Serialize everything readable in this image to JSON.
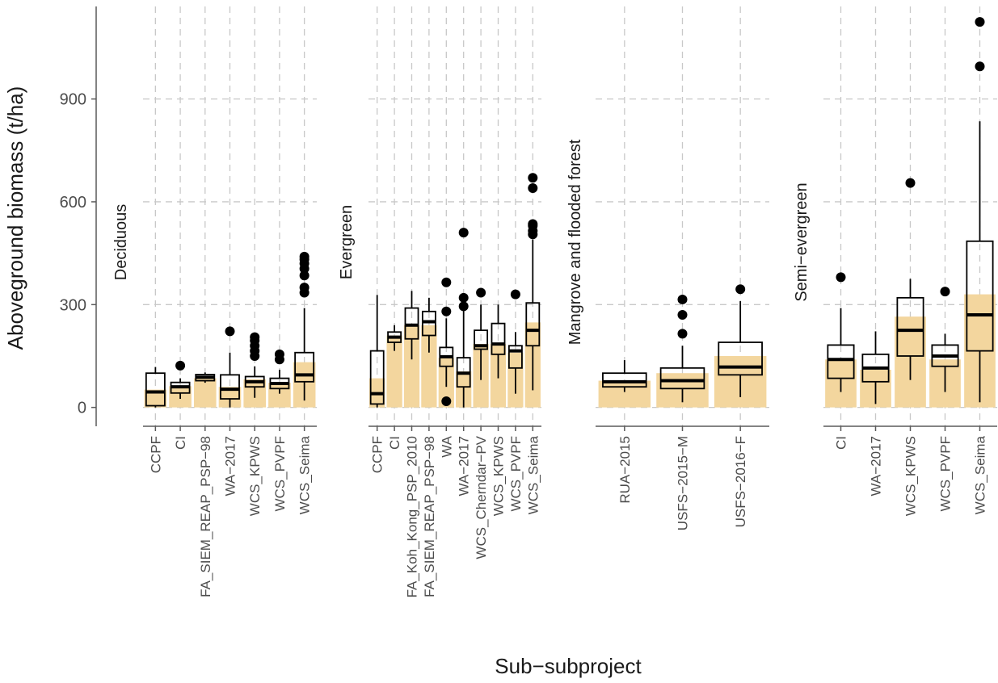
{
  "chart_data": {
    "type": "box",
    "ylabel": "Aboveground biomass (t/ha)",
    "xlabel": "Sub−subproject",
    "ylim": [
      -55,
      1170
    ],
    "yticks": [
      0,
      300,
      600,
      900
    ],
    "grid": true,
    "colors": {
      "bar": "#f3d69e",
      "box": "#000000",
      "grid": "#c8c8c8",
      "axis": "#5a5a5a"
    },
    "panels": [
      {
        "title": "Deciduous",
        "categories": [
          "CCPF",
          "CI",
          "FA_SIEM_REAP_PSP−98",
          "WA−2017",
          "WCS_KPWS",
          "WCS_PVPF",
          "WCS_Seima"
        ],
        "means": [
          52,
          62,
          85,
          60,
          82,
          72,
          132
        ],
        "boxes": [
          {
            "min": 0,
            "q1": 5,
            "median": 45,
            "q3": 100,
            "max": 118,
            "outliers": []
          },
          {
            "min": 25,
            "q1": 42,
            "median": 60,
            "q3": 73,
            "max": 85,
            "outliers": [
              122
            ]
          },
          {
            "min": 72,
            "q1": 78,
            "median": 88,
            "q3": 96,
            "max": 102,
            "outliers": []
          },
          {
            "min": 0,
            "q1": 25,
            "median": 53,
            "q3": 95,
            "max": 160,
            "outliers": [
              222
            ]
          },
          {
            "min": 28,
            "q1": 60,
            "median": 75,
            "q3": 90,
            "max": 120,
            "outliers": [
              150,
              165,
              180,
              195,
              205
            ]
          },
          {
            "min": 40,
            "q1": 55,
            "median": 70,
            "q3": 85,
            "max": 110,
            "outliers": [
              140,
              155
            ]
          },
          {
            "min": 20,
            "q1": 75,
            "median": 95,
            "q3": 160,
            "max": 290,
            "outliers": [
              335,
              350,
              385,
              405,
              420,
              432,
              440
            ]
          }
        ]
      },
      {
        "title": "Evergreen",
        "categories": [
          "CCPF",
          "CI",
          "FA_Koh_Kong_PSP_2010",
          "FA_SIEM_REAP_PSP−98",
          "WA",
          "WA−2017",
          "WCS_Cherndar−PV",
          "WCS_KPWS",
          "WCS_PVPF",
          "WCS_Seima"
        ],
        "means": [
          85,
          210,
          240,
          240,
          145,
          105,
          185,
          185,
          160,
          248
        ],
        "boxes": [
          {
            "min": 0,
            "q1": 10,
            "median": 40,
            "q3": 165,
            "max": 328,
            "outliers": []
          },
          {
            "min": 165,
            "q1": 190,
            "median": 205,
            "q3": 220,
            "max": 240,
            "outliers": []
          },
          {
            "min": 140,
            "q1": 200,
            "median": 240,
            "q3": 290,
            "max": 340,
            "outliers": []
          },
          {
            "min": 160,
            "q1": 210,
            "median": 250,
            "q3": 280,
            "max": 320,
            "outliers": []
          },
          {
            "min": 60,
            "q1": 120,
            "median": 148,
            "q3": 175,
            "max": 260,
            "outliers": [
              18,
              280,
              365
            ]
          },
          {
            "min": 0,
            "q1": 60,
            "median": 100,
            "q3": 145,
            "max": 290,
            "outliers": [
              295,
              320,
              510
            ]
          },
          {
            "min": 80,
            "q1": 170,
            "median": 180,
            "q3": 225,
            "max": 300,
            "outliers": [
              335
            ]
          },
          {
            "min": 85,
            "q1": 155,
            "median": 185,
            "q3": 245,
            "max": 300,
            "outliers": []
          },
          {
            "min": 40,
            "q1": 115,
            "median": 165,
            "q3": 180,
            "max": 220,
            "outliers": [
              330
            ]
          },
          {
            "min": 50,
            "q1": 180,
            "median": 225,
            "q3": 305,
            "max": 490,
            "outliers": [
              505,
              515,
              530,
              535,
              640,
              670
            ]
          }
        ]
      },
      {
        "title": "Mangrove and flooded forest",
        "categories": [
          "RUA−2015",
          "USFS−2015−M",
          "USFS−2016−F"
        ],
        "means": [
          78,
          100,
          150
        ],
        "boxes": [
          {
            "min": 45,
            "q1": 60,
            "median": 75,
            "q3": 100,
            "max": 138,
            "outliers": []
          },
          {
            "min": 15,
            "q1": 55,
            "median": 78,
            "q3": 115,
            "max": 180,
            "outliers": [
              215,
              270,
              315
            ]
          },
          {
            "min": 30,
            "q1": 95,
            "median": 118,
            "q3": 190,
            "max": 310,
            "outliers": [
              345
            ]
          }
        ]
      },
      {
        "title": "Semi−evergreen",
        "categories": [
          "CI",
          "WA−2017",
          "WCS_KPWS",
          "WCS_PVPF",
          "WCS_Seima"
        ],
        "means": [
          140,
          110,
          265,
          140,
          330
        ],
        "boxes": [
          {
            "min": 45,
            "q1": 85,
            "median": 140,
            "q3": 182,
            "max": 290,
            "outliers": [
              380
            ]
          },
          {
            "min": 10,
            "q1": 75,
            "median": 115,
            "q3": 155,
            "max": 222,
            "outliers": []
          },
          {
            "min": 80,
            "q1": 150,
            "median": 225,
            "q3": 320,
            "max": 375,
            "outliers": [
              655
            ]
          },
          {
            "min": 45,
            "q1": 120,
            "median": 150,
            "q3": 182,
            "max": 215,
            "outliers": [
              338
            ]
          },
          {
            "min": 15,
            "q1": 165,
            "median": 270,
            "q3": 485,
            "max": 835,
            "outliers": [
              995,
              1125
            ]
          }
        ]
      }
    ]
  }
}
